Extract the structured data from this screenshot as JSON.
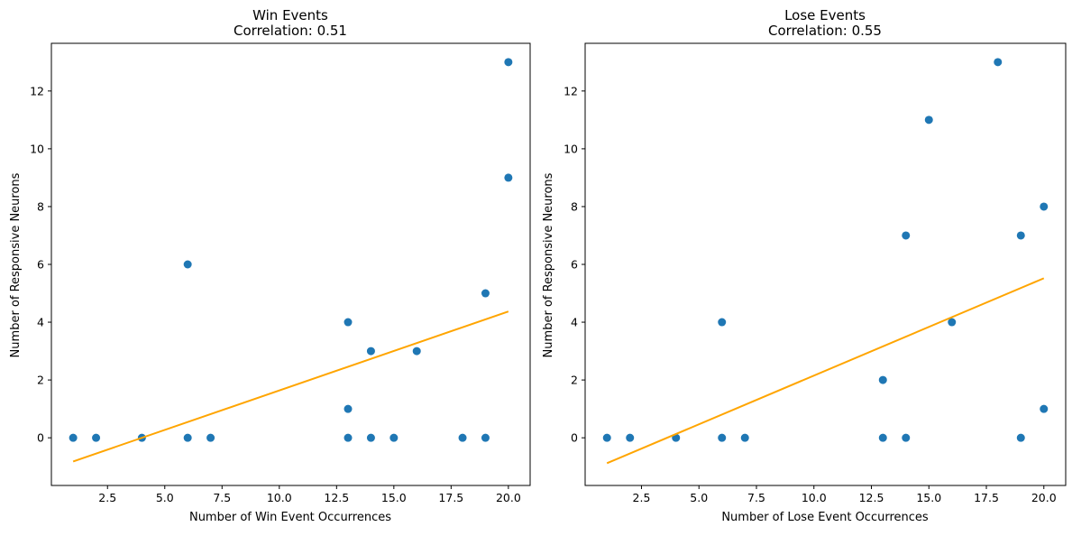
{
  "chart_data": [
    {
      "type": "scatter",
      "title": "Win Events",
      "subtitle": "Correlation: 0.51",
      "xlabel": "Number of Win Event Occurrences",
      "ylabel": "Number of Responsive Neurons",
      "xlim": [
        0.05,
        20.95
      ],
      "ylim": [
        -1.65,
        13.65
      ],
      "xticks": [
        "2.5",
        "5.0",
        "7.5",
        "10.0",
        "12.5",
        "15.0",
        "17.5",
        "20.0"
      ],
      "yticks": [
        "0",
        "2",
        "4",
        "6",
        "8",
        "10",
        "12"
      ],
      "grid": false,
      "points": [
        {
          "x": 1,
          "y": 0
        },
        {
          "x": 2,
          "y": 0
        },
        {
          "x": 4,
          "y": 0
        },
        {
          "x": 6,
          "y": 6
        },
        {
          "x": 6,
          "y": 0
        },
        {
          "x": 7,
          "y": 0
        },
        {
          "x": 13,
          "y": 4
        },
        {
          "x": 13,
          "y": 1
        },
        {
          "x": 13,
          "y": 0
        },
        {
          "x": 14,
          "y": 3
        },
        {
          "x": 14,
          "y": 0
        },
        {
          "x": 15,
          "y": 0
        },
        {
          "x": 16,
          "y": 3
        },
        {
          "x": 18,
          "y": 0
        },
        {
          "x": 19,
          "y": 5
        },
        {
          "x": 19,
          "y": 0
        },
        {
          "x": 20,
          "y": 13
        },
        {
          "x": 20,
          "y": 9
        }
      ],
      "fit_line": {
        "x": [
          1,
          20
        ],
        "y": [
          -0.82,
          4.37
        ]
      },
      "point_color": "#1f77b4",
      "line_color": "#ffa500"
    },
    {
      "type": "scatter",
      "title": "Lose Events",
      "subtitle": "Correlation: 0.55",
      "xlabel": "Number of Lose Event Occurrences",
      "ylabel": "Number of Responsive Neurons",
      "xlim": [
        0.05,
        20.95
      ],
      "ylim": [
        -1.65,
        13.65
      ],
      "xticks": [
        "2.5",
        "5.0",
        "7.5",
        "10.0",
        "12.5",
        "15.0",
        "17.5",
        "20.0"
      ],
      "yticks": [
        "0",
        "2",
        "4",
        "6",
        "8",
        "10",
        "12"
      ],
      "grid": false,
      "points": [
        {
          "x": 1,
          "y": 0
        },
        {
          "x": 2,
          "y": 0
        },
        {
          "x": 4,
          "y": 0
        },
        {
          "x": 6,
          "y": 4
        },
        {
          "x": 6,
          "y": 0
        },
        {
          "x": 7,
          "y": 0
        },
        {
          "x": 13,
          "y": 2
        },
        {
          "x": 13,
          "y": 0
        },
        {
          "x": 14,
          "y": 7
        },
        {
          "x": 14,
          "y": 0
        },
        {
          "x": 15,
          "y": 11
        },
        {
          "x": 16,
          "y": 4
        },
        {
          "x": 18,
          "y": 13
        },
        {
          "x": 19,
          "y": 7
        },
        {
          "x": 19,
          "y": 0
        },
        {
          "x": 20,
          "y": 8
        },
        {
          "x": 20,
          "y": 1
        }
      ],
      "fit_line": {
        "x": [
          1,
          20
        ],
        "y": [
          -0.88,
          5.52
        ]
      },
      "point_color": "#1f77b4",
      "line_color": "#ffa500"
    }
  ]
}
